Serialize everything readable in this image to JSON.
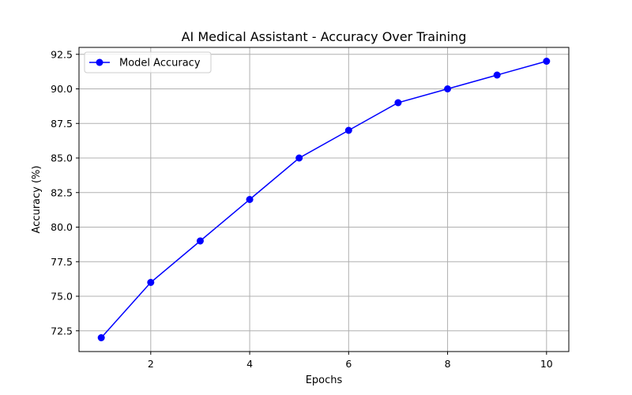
{
  "chart_data": {
    "type": "line",
    "title": "AI Medical Assistant - Accuracy Over Training",
    "xlabel": "Epochs",
    "ylabel": "Accuracy (%)",
    "xlim": [
      0.55,
      10.45
    ],
    "ylim": [
      71.0,
      93.0
    ],
    "xticks": [
      2,
      4,
      6,
      8,
      10
    ],
    "yticks": [
      72.5,
      75.0,
      77.5,
      80.0,
      82.5,
      85.0,
      87.5,
      90.0,
      92.5
    ],
    "grid": true,
    "legend_position": "top-left",
    "series": [
      {
        "name": "Model Accuracy",
        "color": "#0000ff",
        "marker": "circle",
        "x": [
          1,
          2,
          3,
          4,
          5,
          6,
          7,
          8,
          9,
          10
        ],
        "y": [
          72,
          76,
          79,
          82,
          85,
          87,
          89,
          90,
          91,
          92
        ]
      }
    ]
  }
}
